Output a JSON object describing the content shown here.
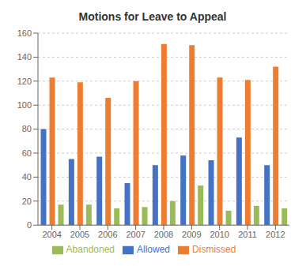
{
  "chart_data": {
    "type": "bar",
    "title": "Motions for Leave to Appeal",
    "categories": [
      "2004",
      "2005",
      "2006",
      "2007",
      "2008",
      "2009",
      "2010",
      "2011",
      "2012"
    ],
    "series": [
      {
        "name": "Allowed",
        "color": "#4472C4",
        "values": [
          80,
          55,
          57,
          35,
          50,
          58,
          54,
          73,
          50
        ]
      },
      {
        "name": "Dismissed",
        "color": "#ED7D31",
        "values": [
          123,
          119,
          106,
          120,
          151,
          150,
          123,
          121,
          132
        ]
      },
      {
        "name": "Abandoned",
        "color": "#9BBB59",
        "values": [
          17,
          17,
          14,
          15,
          20,
          33,
          12,
          16,
          14
        ]
      }
    ],
    "ylim": [
      0,
      160
    ],
    "yticks": [
      0,
      20,
      40,
      60,
      80,
      100,
      120,
      140,
      160
    ],
    "grid": true,
    "legend": "bottom"
  }
}
